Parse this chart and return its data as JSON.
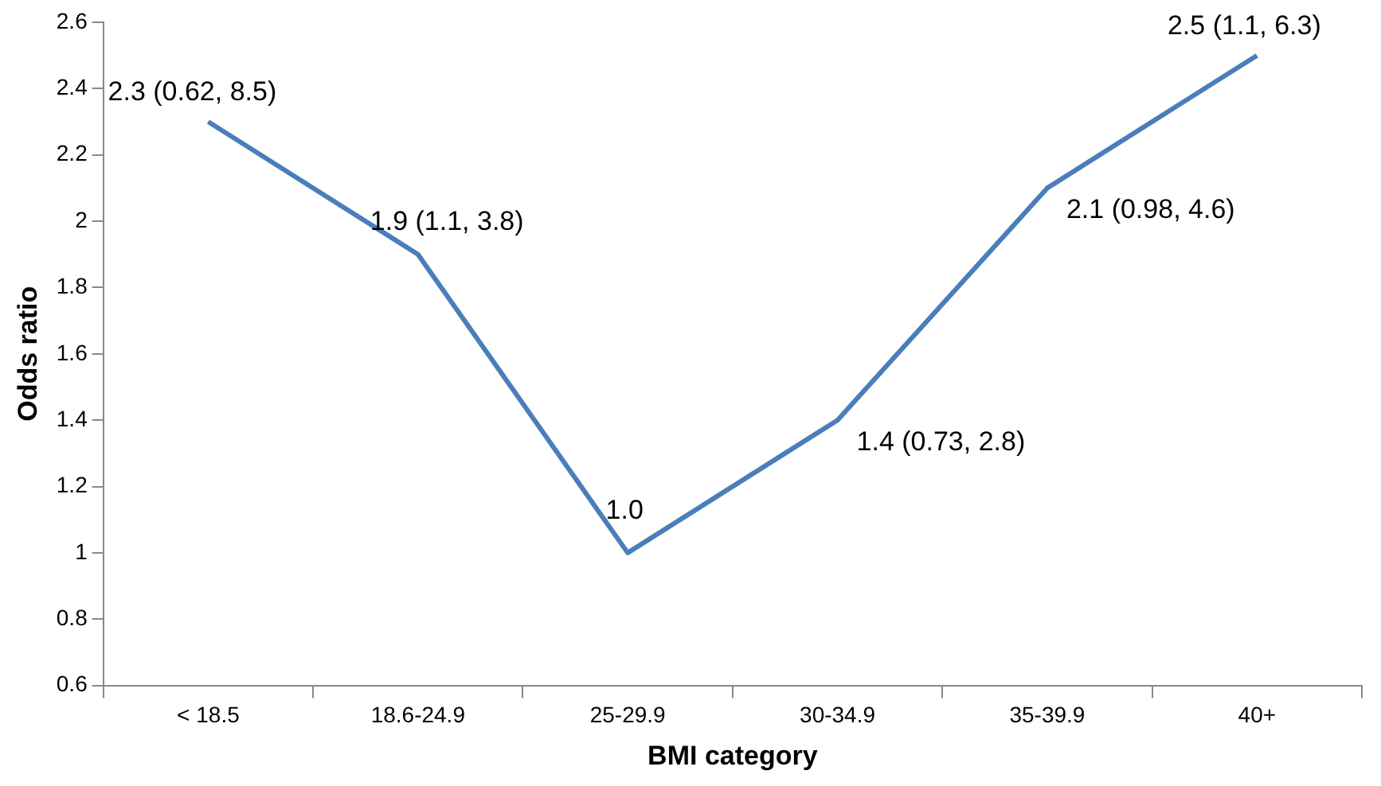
{
  "chart_data": {
    "type": "line",
    "xlabel": "BMI category",
    "ylabel": "Odds ratio",
    "categories": [
      "< 18.5",
      "18.6-24.9",
      "25-29.9",
      "30-34.9",
      "35-39.9",
      "40+"
    ],
    "series": [
      {
        "color": "#4a7ebb",
        "values": [
          2.3,
          1.9,
          1.0,
          1.4,
          2.1,
          2.5
        ],
        "value_labels": [
          "2.3 (0.62, 8.5)",
          "1.9 (1.1, 3.8)",
          "1.0",
          "1.4 (0.73, 2.8)",
          "2.1 (0.98, 4.6)",
          "2.5 (1.1, 6.3)"
        ]
      }
    ],
    "ylim": [
      0.6,
      2.6
    ],
    "yticks": [
      0.6,
      0.8,
      1,
      1.2,
      1.4,
      1.6,
      1.8,
      2,
      2.2,
      2.4,
      2.6
    ],
    "grid": false,
    "legend": false,
    "marker": "none",
    "line_style": "solid"
  }
}
